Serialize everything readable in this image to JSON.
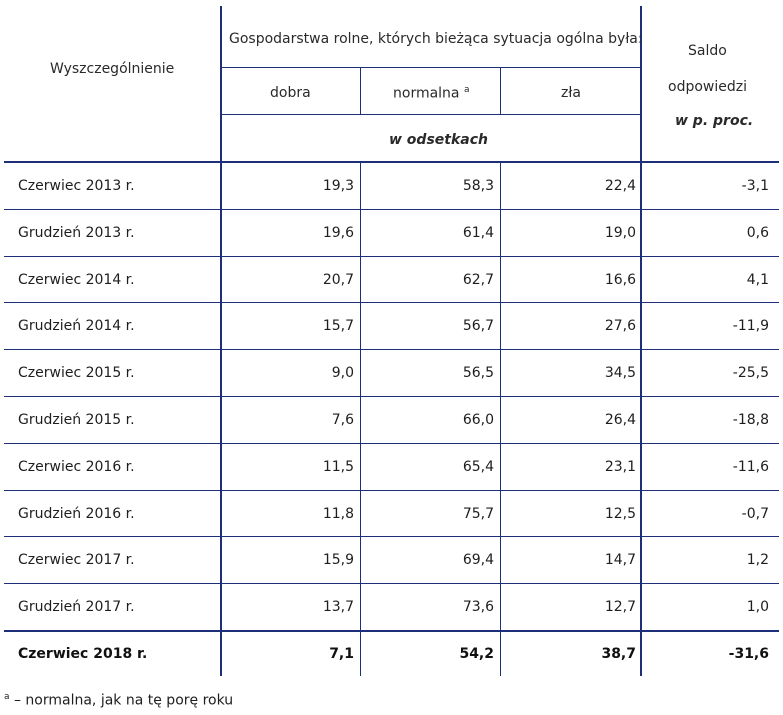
{
  "header": {
    "col_label": "Wyszczególnienie",
    "group_title": "Gospodarstwa rolne, których bieżąca sytuacja ogólna była:",
    "good": "dobra",
    "normal": "normalna",
    "normal_sup": "a",
    "bad": "zła",
    "unit": "w odsetkach",
    "saldo_line1": "Saldo",
    "saldo_line2": "odpowiedzi",
    "saldo_unit": "w p. proc."
  },
  "rows": [
    {
      "period": "Czerwiec 2013 r.",
      "good": "19,3",
      "normal": "58,3",
      "bad": "22,4",
      "saldo": "-3,1"
    },
    {
      "period": "Grudzień 2013 r.",
      "good": "19,6",
      "normal": "61,4",
      "bad": "19,0",
      "saldo": "0,6"
    },
    {
      "period": "Czerwiec 2014 r.",
      "good": "20,7",
      "normal": "62,7",
      "bad": "16,6",
      "saldo": "4,1"
    },
    {
      "period": "Grudzień 2014 r.",
      "good": "15,7",
      "normal": "56,7",
      "bad": "27,6",
      "saldo": "-11,9"
    },
    {
      "period": "Czerwiec 2015 r.",
      "good": "9,0",
      "normal": "56,5",
      "bad": "34,5",
      "saldo": "-25,5"
    },
    {
      "period": "Grudzień 2015 r.",
      "good": "7,6",
      "normal": "66,0",
      "bad": "26,4",
      "saldo": "-18,8"
    },
    {
      "period": "Czerwiec 2016 r.",
      "good": "11,5",
      "normal": "65,4",
      "bad": "23,1",
      "saldo": "-11,6"
    },
    {
      "period": "Grudzień 2016 r.",
      "good": "11,8",
      "normal": "75,7",
      "bad": "12,5",
      "saldo": "-0,7"
    },
    {
      "period": "Czerwiec 2017 r.",
      "good": "15,9",
      "normal": "69,4",
      "bad": "14,7",
      "saldo": "1,2"
    },
    {
      "period": "Grudzień 2017 r.",
      "good": "13,7",
      "normal": "73,6",
      "bad": "12,7",
      "saldo": "1,0"
    },
    {
      "period": "Czerwiec 2018 r.",
      "good": "7,1",
      "normal": "54,2",
      "bad": "38,7",
      "saldo": "-31,6"
    }
  ],
  "footnote": {
    "mark": "a",
    "text": " – normalna, jak na tę porę roku"
  },
  "colors": {
    "rule": "#1c2f78"
  }
}
